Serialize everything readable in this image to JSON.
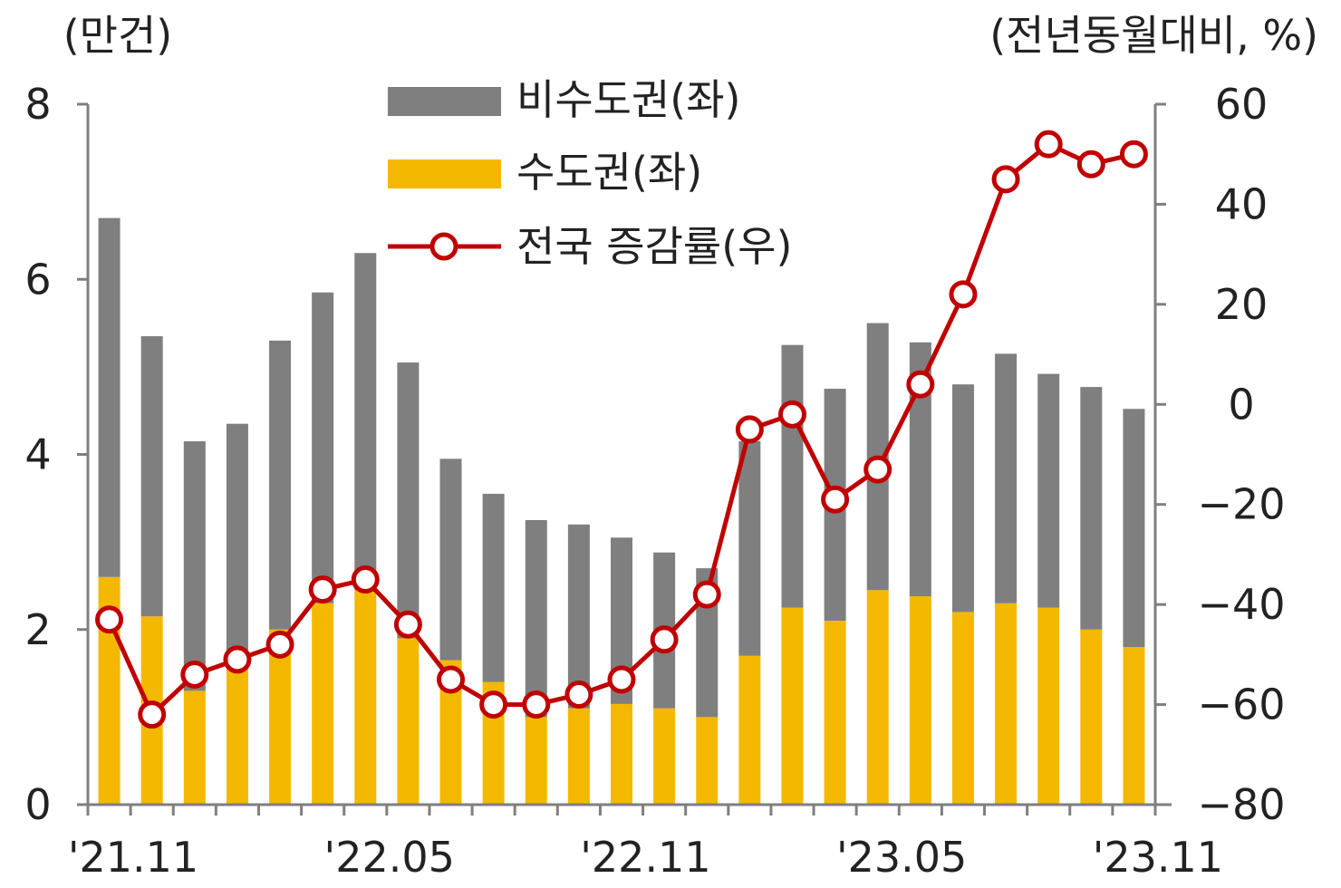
{
  "chart_data": {
    "type": "bar",
    "stacked": true,
    "left_unit": "(만건)",
    "right_unit": "(전년동월대비, %)",
    "categories": [
      "'21.11",
      "'21.12",
      "'22.01",
      "'22.02",
      "'22.03",
      "'22.04",
      "'22.05",
      "'22.06",
      "'22.07",
      "'22.08",
      "'22.09",
      "'22.10",
      "'22.11",
      "'22.12",
      "'23.01",
      "'23.02",
      "'23.03",
      "'23.04",
      "'23.05",
      "'23.06",
      "'23.07",
      "'23.08",
      "'23.09",
      "'23.10",
      "'23.11"
    ],
    "x_tick_labels": [
      {
        "index": 0,
        "label": "'21.11"
      },
      {
        "index": 6,
        "label": "'22.05"
      },
      {
        "index": 12,
        "label": "'22.11"
      },
      {
        "index": 18,
        "label": "'23.05"
      },
      {
        "index": 24,
        "label": "'23.11"
      }
    ],
    "series": [
      {
        "name": "수도권(좌)",
        "axis": "left",
        "kind": "bar",
        "color": "#F5B800",
        "values": [
          2.6,
          2.15,
          1.3,
          1.6,
          2.0,
          2.3,
          2.45,
          1.9,
          1.65,
          1.4,
          1.0,
          1.1,
          1.15,
          1.1,
          1.0,
          1.7,
          2.25,
          2.1,
          2.45,
          2.38,
          2.2,
          2.3,
          2.25,
          2.0,
          1.8
        ]
      },
      {
        "name": "비수도권(좌)",
        "axis": "left",
        "kind": "bar",
        "color": "#7F7F7F",
        "values": [
          4.1,
          3.2,
          2.85,
          2.75,
          3.3,
          3.55,
          3.85,
          3.15,
          2.3,
          2.15,
          2.25,
          2.1,
          1.9,
          1.78,
          1.7,
          2.45,
          3.0,
          2.65,
          3.05,
          2.9,
          2.6,
          2.85,
          2.67,
          2.77,
          2.72
        ]
      },
      {
        "name": "전국 증감률(우)",
        "axis": "right",
        "kind": "line",
        "color": "#C00000",
        "values": [
          -43,
          -62,
          -54,
          -51,
          -48,
          -37,
          -35,
          -44,
          -55,
          -60,
          -60,
          -58,
          -55,
          -47,
          -38,
          -5,
          -2,
          -19,
          -13,
          4,
          22,
          45,
          52,
          48,
          50
        ]
      }
    ],
    "left_ylim": [
      0,
      8
    ],
    "left_ticks": [
      "0",
      "2",
      "4",
      "6",
      "8"
    ],
    "right_ylim": [
      -80,
      60
    ],
    "right_ticks": [
      "−80",
      "−60",
      "−40",
      "−20",
      "0",
      "20",
      "40",
      "60"
    ],
    "legend": {
      "placement": "top-center",
      "entries": [
        "비수도권(좌)",
        "수도권(좌)",
        "전국 증감률(우)"
      ]
    },
    "grid": false
  }
}
